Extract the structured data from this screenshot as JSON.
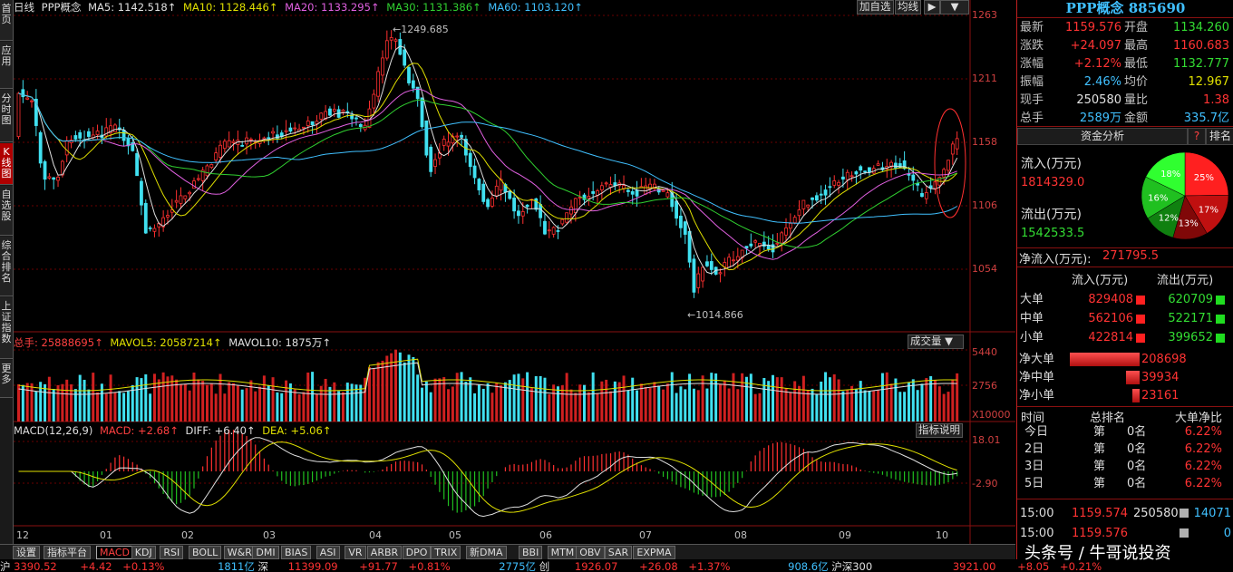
{
  "left_nav": [
    {
      "label": "首页",
      "active": false
    },
    {
      "label": "应用",
      "active": false
    },
    {
      "label": "分时图",
      "active": false
    },
    {
      "label": "K线图",
      "active": true
    },
    {
      "label": "自选股",
      "active": false
    },
    {
      "label": "综合排名",
      "active": false
    },
    {
      "label": "上证指数",
      "active": false
    },
    {
      "label": "更多",
      "active": false
    }
  ],
  "legend": {
    "period": "日线",
    "name": "PPP概念",
    "ma5": "MA5: 1142.518↑",
    "ma10": "MA10: 1128.446↑",
    "ma20": "MA20: 1133.295↑",
    "ma30": "MA30: 1131.386↑",
    "ma60": "MA60: 1103.120↑"
  },
  "toolbar": {
    "add_watch": "加自选",
    "avg_line": "均线"
  },
  "price_axis": [
    "1263",
    "1211",
    "1158",
    "1106",
    "1054"
  ],
  "annotations": {
    "high": "1249.685",
    "low": "1014.866"
  },
  "volume": {
    "legend_total": "总手: 25888695↑",
    "legend_mavol5": "MAVOL5: 20587214↑",
    "legend_mavol10": "MAVOL10: 1875万↑",
    "selector": "成交量",
    "axis": [
      "5440",
      "2756",
      "X10000"
    ]
  },
  "macd": {
    "legend_name": "MACD(12,26,9)",
    "legend_macd": "MACD: +2.68↑",
    "legend_diff": "DIFF: +6.40↑",
    "legend_dea": "DEA: +5.06↑",
    "explain_button": "指标说明",
    "axis": [
      "18.01",
      "-2.90"
    ]
  },
  "x_axis": [
    "12",
    "01",
    "02",
    "03",
    "04",
    "05",
    "06",
    "07",
    "08",
    "09",
    "10"
  ],
  "tabs": [
    "设置",
    "指标平台",
    "MACD",
    "KDJ",
    "RSI",
    "BOLL",
    "W&R",
    "DMI",
    "BIAS",
    "ASI",
    "VR",
    "ARBR",
    "DPO",
    "TRIX",
    "新DMA",
    "BBI",
    "MTM",
    "OBV",
    "SAR",
    "EXPMA"
  ],
  "active_tab": "MACD",
  "status": {
    "sh_prefix": "沪",
    "sh_index": "3390.52",
    "sh_change": "+4.42",
    "sh_pct": "+0.13%",
    "sh_amount": "1811亿",
    "sz_label": "深",
    "sz_index": "11399.09",
    "sz_change": "+91.77",
    "sz_pct": "+0.81%",
    "sz_amount": "2775亿",
    "cy_label": "创",
    "cy_index": "1926.07",
    "cy_change": "+26.08",
    "cy_pct": "+1.37%",
    "hs_amount": "908.6亿",
    "hs_label": "沪深300",
    "hs_index": "3921.00",
    "hs_change": "+8.05",
    "hs_pct": "+0.21%"
  },
  "panel": {
    "title": "PPP概念 885690",
    "quote": [
      {
        "l1": "最新",
        "v1": "1159.576",
        "c1": "red",
        "l2": "开盘",
        "v2": "1134.260",
        "c2": "green"
      },
      {
        "l1": "涨跌",
        "v1": "+24.097",
        "c1": "red",
        "l2": "最高",
        "v2": "1160.683",
        "c2": "red"
      },
      {
        "l1": "涨幅",
        "v1": "+2.12%",
        "c1": "red",
        "l2": "最低",
        "v2": "1132.777",
        "c2": "green"
      },
      {
        "l1": "振幅",
        "v1": "2.46%",
        "c1": "cyan",
        "l2": "均价",
        "v2": "12.967",
        "c2": "yellow"
      },
      {
        "l1": "现手",
        "v1": "250580",
        "c1": "white",
        "l2": "量比",
        "v2": "1.38",
        "c2": "red"
      },
      {
        "l1": "总手",
        "v1": "2589万",
        "c1": "cyan",
        "l2": "金额",
        "v2": "335.7亿",
        "c2": "cyan"
      }
    ],
    "fund_tab": "资金分析",
    "help_icon": "?",
    "rank_tab": "排名",
    "inflow_label": "流入(万元)",
    "inflow_value": "1814329.0",
    "outflow_label": "流出(万元)",
    "outflow_value": "1542533.5",
    "net_label": "净流入(万元):",
    "net_value": "271795.5",
    "pie": [
      {
        "label": "25%",
        "value": 25,
        "color": "#ff2020"
      },
      {
        "label": "17%",
        "value": 17,
        "color": "#c01010"
      },
      {
        "label": "13%",
        "value": 13,
        "color": "#800808"
      },
      {
        "label": "12%",
        "value": 12,
        "color": "#108010"
      },
      {
        "label": "16%",
        "value": 16,
        "color": "#20c020"
      },
      {
        "label": "18%",
        "value": 18,
        "color": "#30ff30"
      }
    ],
    "flow_header_in": "流入(万元)",
    "flow_header_out": "流出(万元)",
    "flows": [
      {
        "label": "大单",
        "in": "829408",
        "out": "620709"
      },
      {
        "label": "中单",
        "in": "562106",
        "out": "522171"
      },
      {
        "label": "小单",
        "in": "422814",
        "out": "399652"
      }
    ],
    "net_flows": [
      {
        "label": "净大单",
        "value": "208698",
        "fraction": 1.0
      },
      {
        "label": "净中单",
        "value": "39934",
        "fraction": 0.19
      },
      {
        "label": "净小单",
        "value": "23161",
        "fraction": 0.11
      }
    ],
    "rank_headers": [
      "时间",
      "总排名",
      "大单净比"
    ],
    "ranks": [
      {
        "period": "今日",
        "prefix": "第",
        "rank": "0名",
        "ratio": "6.22%"
      },
      {
        "period": "2日",
        "prefix": "第",
        "rank": "0名",
        "ratio": "6.22%"
      },
      {
        "period": "3日",
        "prefix": "第",
        "rank": "0名",
        "ratio": "6.22%"
      },
      {
        "period": "5日",
        "prefix": "第",
        "rank": "0名",
        "ratio": "6.22%"
      }
    ],
    "ticks": [
      {
        "time": "15:00",
        "price": "1159.574",
        "volume": "250580",
        "extra": "14071"
      },
      {
        "time": "15:00",
        "price": "1159.576",
        "volume": "",
        "extra": "0"
      }
    ]
  },
  "watermark": "头条号 / 牛哥说投资"
}
